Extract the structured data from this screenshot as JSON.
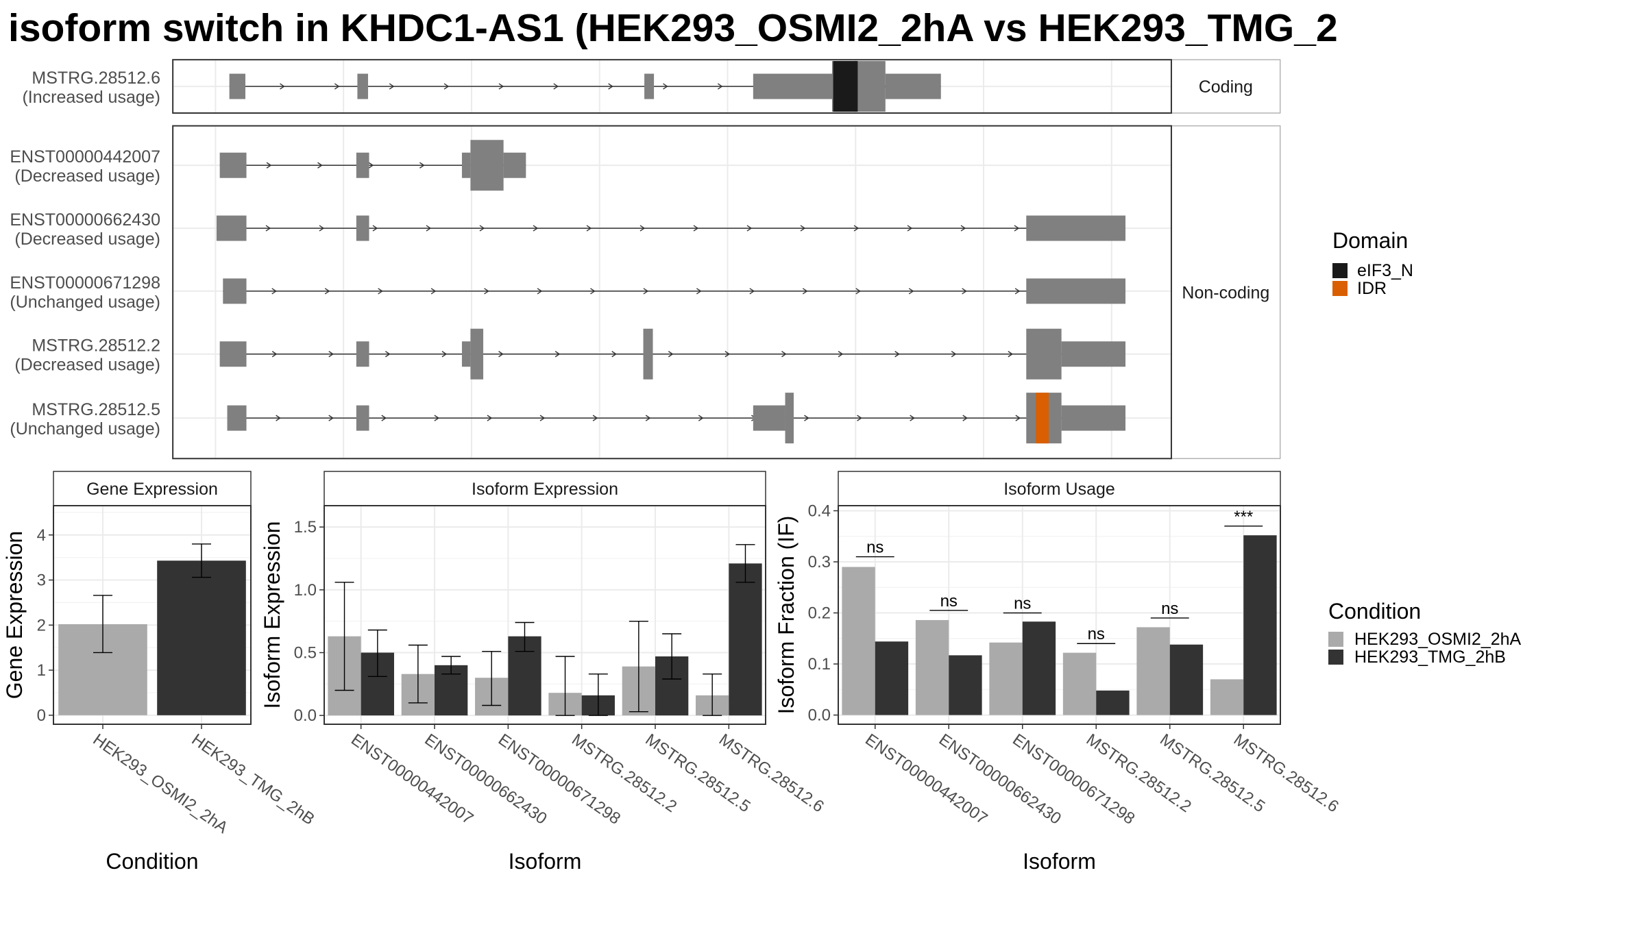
{
  "title": "isoform switch in KHDC1-AS1 (HEK293_OSMI2_2hA vs HEK293_TMG_2",
  "colors": {
    "exon": "#808080",
    "eIF3_N": "#1a1a1a",
    "IDR": "#d95f02",
    "cond_a": "#aaaaaa",
    "cond_b": "#333333",
    "grid": "#ebebeb",
    "strip_bg": "#ffffff"
  },
  "structure": {
    "facets": [
      "Coding",
      "Non-coding"
    ],
    "transcripts": [
      {
        "name": "MSTRG.28512.6",
        "usage": "(Increased usage)",
        "facet": "Coding",
        "exons": [
          [
            215,
            230,
            "t"
          ],
          [
            335,
            345,
            "t"
          ],
          [
            604,
            613,
            "t"
          ],
          [
            706,
            780,
            "t"
          ],
          [
            780,
            830,
            "T"
          ],
          [
            830,
            882,
            "t"
          ]
        ],
        "domains": [
          [
            "eIF3_N",
            781,
            804
          ]
        ],
        "arrows": 12
      },
      {
        "name": "ENST00000442007",
        "usage": "(Decreased usage)",
        "facet": "Non-coding",
        "exons": [
          [
            206,
            231,
            "t"
          ],
          [
            334,
            346,
            "t"
          ],
          [
            433,
            441,
            "t"
          ],
          [
            441,
            472,
            "T"
          ],
          [
            472,
            493,
            "t"
          ]
        ],
        "domains": [],
        "arrows": 5
      },
      {
        "name": "ENST00000662430",
        "usage": "(Decreased usage)",
        "facet": "Non-coding",
        "exons": [
          [
            203,
            231,
            "t"
          ],
          [
            334,
            346,
            "t"
          ],
          [
            962,
            1055,
            "t"
          ]
        ],
        "domains": [],
        "arrows": 16
      },
      {
        "name": "ENST00000671298",
        "usage": "(Unchanged usage)",
        "facet": "Non-coding",
        "exons": [
          [
            209,
            231,
            "t"
          ],
          [
            962,
            1055,
            "t"
          ]
        ],
        "domains": [],
        "arrows": 16
      },
      {
        "name": "MSTRG.28512.2",
        "usage": "(Decreased usage)",
        "facet": "Non-coding",
        "exons": [
          [
            206,
            231,
            "t"
          ],
          [
            334,
            346,
            "t"
          ],
          [
            433,
            441,
            "t"
          ],
          [
            441,
            453,
            "T"
          ],
          [
            603,
            612,
            "T"
          ],
          [
            962,
            995,
            "T"
          ],
          [
            995,
            1055,
            "t"
          ]
        ],
        "domains": [],
        "arrows": 15
      },
      {
        "name": "MSTRG.28512.5",
        "usage": "(Unchanged usage)",
        "facet": "Non-coding",
        "exons": [
          [
            213,
            231,
            "t"
          ],
          [
            334,
            346,
            "t"
          ],
          [
            706,
            736,
            "t"
          ],
          [
            736,
            744,
            "T"
          ],
          [
            962,
            995,
            "T"
          ],
          [
            995,
            1055,
            "t"
          ]
        ],
        "domains": [
          [
            "IDR",
            971,
            983
          ]
        ],
        "arrows": 16
      }
    ]
  },
  "legend_domain": {
    "title": "Domain",
    "items": [
      "eIF3_N",
      "IDR"
    ]
  },
  "legend_condition": {
    "title": "Condition",
    "items": [
      "HEK293_OSMI2_2hA",
      "HEK293_TMG_2hB"
    ]
  },
  "chart_data": [
    {
      "type": "bar",
      "title": "Gene Expression",
      "xlabel": "Condition",
      "ylabel": "Gene Expression",
      "categories": [
        "HEK293_OSMI2_2hA",
        "HEK293_TMG_2hB"
      ],
      "values": [
        2.02,
        3.43
      ],
      "errors": [
        [
          1.39,
          2.66
        ],
        [
          3.06,
          3.8
        ]
      ],
      "ylim": [
        -0.2,
        4.65
      ],
      "yticks": [
        "0",
        "1",
        "2",
        "3",
        "4"
      ]
    },
    {
      "type": "bar",
      "title": "Isoform Expression",
      "xlabel": "Isoform",
      "ylabel": "Isoform Expression",
      "categories": [
        "ENST00000442007",
        "ENST00000662430",
        "ENST00000671298",
        "MSTRG.28512.2",
        "MSTRG.28512.5",
        "MSTRG.28512.6"
      ],
      "series": [
        {
          "name": "HEK293_OSMI2_2hA",
          "values": [
            0.63,
            0.33,
            0.3,
            0.18,
            0.39,
            0.16
          ],
          "errors": [
            [
              0.2,
              1.06
            ],
            [
              0.1,
              0.56
            ],
            [
              0.08,
              0.51
            ],
            [
              0.0,
              0.47
            ],
            [
              0.03,
              0.75
            ],
            [
              0.0,
              0.33
            ]
          ]
        },
        {
          "name": "HEK293_TMG_2hB",
          "values": [
            0.5,
            0.4,
            0.63,
            0.16,
            0.47,
            1.21
          ],
          "errors": [
            [
              0.31,
              0.68
            ],
            [
              0.33,
              0.47
            ],
            [
              0.51,
              0.74
            ],
            [
              0.0,
              0.33
            ],
            [
              0.29,
              0.65
            ],
            [
              1.06,
              1.36
            ]
          ]
        }
      ],
      "ylim": [
        -0.07,
        1.67
      ],
      "yticks": [
        "0.0",
        "0.5",
        "1.0",
        "1.5"
      ]
    },
    {
      "type": "bar",
      "title": "Isoform Usage",
      "xlabel": "Isoform",
      "ylabel": "Isoform Fraction (IF)",
      "categories": [
        "ENST00000442007",
        "ENST00000662430",
        "ENST00000671298",
        "MSTRG.28512.2",
        "MSTRG.28512.5",
        "MSTRG.28512.6"
      ],
      "series": [
        {
          "name": "HEK293_OSMI2_2hA",
          "values": [
            0.29,
            0.186,
            0.142,
            0.122,
            0.172,
            0.07
          ]
        },
        {
          "name": "HEK293_TMG_2hB",
          "values": [
            0.144,
            0.117,
            0.183,
            0.048,
            0.138,
            0.352
          ]
        }
      ],
      "significance": [
        "ns",
        "ns",
        "ns",
        "ns",
        "ns",
        "***"
      ],
      "sig_y": [
        0.31,
        0.205,
        0.2,
        0.14,
        0.19,
        0.37
      ],
      "ylim": [
        -0.018,
        0.41
      ],
      "yticks": [
        "0.0",
        "0.1",
        "0.2",
        "0.3",
        "0.4"
      ]
    }
  ]
}
